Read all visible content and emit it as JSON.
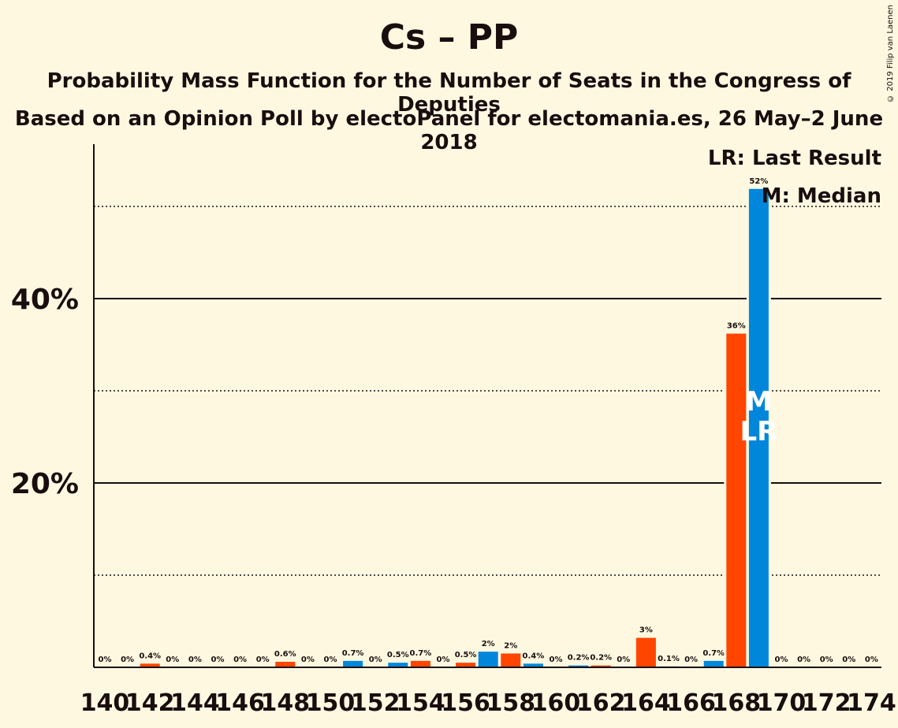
{
  "title": "Cs – PP",
  "subtitle_1": "Probability Mass Function for the Number of Seats in the Congress of Deputies",
  "subtitle_2": "Based on an Opinion Poll by electoPanel for electomania.es, 26 May–2 June 2018",
  "copyright": "© 2019 Filip van Laenen",
  "legend": {
    "last_result": "LR: Last Result",
    "median": "M: Median"
  },
  "markers": {
    "median_label": "M",
    "last_result_label": "LR",
    "median_seat": 169,
    "last_result_seat": 169
  },
  "colors": {
    "background": "#FFF8E1",
    "cs_orange": "#FF4500",
    "pp_blue": "#0087DC",
    "axis": "#1a0d0d"
  },
  "chart_data": {
    "type": "bar",
    "x": [
      140,
      141,
      142,
      143,
      144,
      145,
      146,
      147,
      148,
      149,
      150,
      151,
      152,
      153,
      154,
      155,
      156,
      157,
      158,
      159,
      160,
      161,
      162,
      163,
      164,
      165,
      166,
      167,
      168,
      169,
      170,
      171,
      172,
      173,
      174
    ],
    "values": [
      0,
      0,
      0.4,
      0,
      0,
      0,
      0,
      0,
      0.6,
      0,
      0,
      0.7,
      0,
      0.5,
      0.7,
      0,
      0.5,
      1.7,
      1.5,
      0.4,
      0,
      0.2,
      0.2,
      0,
      3.2,
      0.1,
      0,
      0.7,
      36.2,
      51.9,
      0,
      0,
      0,
      0,
      0
    ],
    "labels": [
      "0%",
      "0%",
      "0.4%",
      "0%",
      "0%",
      "0%",
      "0%",
      "0%",
      "0.6%",
      "0%",
      "0%",
      "0.7%",
      "0%",
      "0.5%",
      "0.7%",
      "0%",
      "0.5%",
      "2%",
      "2%",
      "0.4%",
      "0%",
      "0.2%",
      "0.2%",
      "0%",
      "3%",
      "0.1%",
      "0%",
      "0.7%",
      "36%",
      "52%",
      "0%",
      "0%",
      "0%",
      "0%",
      "0%"
    ],
    "series_colors": [
      "blue",
      "blue",
      "orange",
      "blue",
      "blue",
      "blue",
      "blue",
      "blue",
      "orange",
      "blue",
      "blue",
      "blue",
      "blue",
      "blue",
      "orange",
      "blue",
      "orange",
      "blue",
      "orange",
      "blue",
      "blue",
      "blue",
      "orange",
      "blue",
      "orange",
      "blue",
      "blue",
      "blue",
      "orange",
      "blue",
      "blue",
      "blue",
      "blue",
      "blue",
      "blue"
    ],
    "x_tick_labels": [
      "140",
      "142",
      "144",
      "146",
      "148",
      "150",
      "152",
      "154",
      "156",
      "158",
      "160",
      "162",
      "164",
      "166",
      "168",
      "170",
      "172",
      "174"
    ],
    "y_tick_labels": [
      "20%",
      "40%"
    ],
    "ylim": [
      0,
      56
    ],
    "major_gridlines": [
      20,
      40
    ],
    "minor_gridlines": [
      10,
      30,
      50
    ],
    "grid": true,
    "legend_position": "top-right"
  }
}
